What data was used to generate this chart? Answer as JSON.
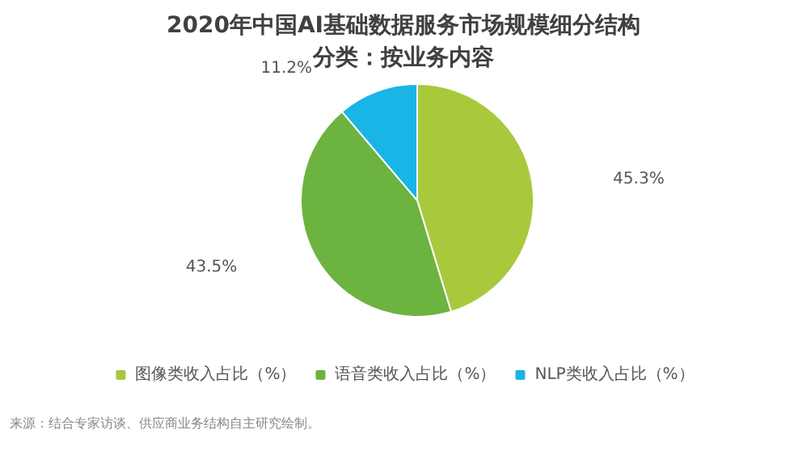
{
  "chart_data": {
    "type": "pie",
    "title": "2020年中国AI基础数据服务市场规模细分结构",
    "subtitle": "分类：按业务内容",
    "categories": [
      "图像类收入占比（%）",
      "语音类收入占比（%）",
      "NLP类收入占比（%）"
    ],
    "values": [
      45.3,
      43.5,
      11.2
    ],
    "colors": [
      "#a9c93c",
      "#6db33f",
      "#19b5e6"
    ],
    "value_labels": [
      "45.3%",
      "43.5%",
      "11.2%"
    ],
    "legend": "bottom",
    "annotations": [
      "来源：结合专家访谈、供应商业务结构自主研究绘制。"
    ]
  }
}
